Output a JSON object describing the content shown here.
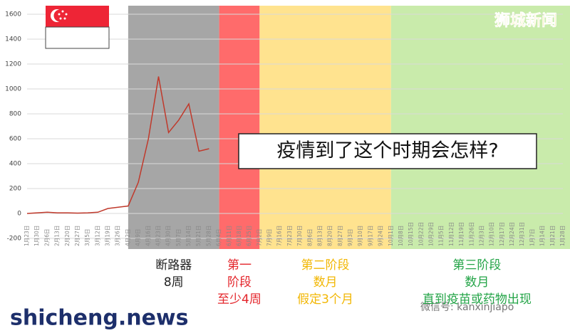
{
  "chart_data": {
    "type": "line",
    "categories": [
      "1月23日",
      "1月30日",
      "2月6日",
      "2月13日",
      "2月20日",
      "2月27日",
      "3月5日",
      "3月12日",
      "3月19日",
      "3月26日",
      "4月2日",
      "4月9日",
      "4月16日",
      "4月23日",
      "4月30日",
      "5月7日",
      "5月14日",
      "5月21日",
      "5月28日",
      "6月4日",
      "6月11日",
      "6月18日",
      "6月25日",
      "7月2日",
      "7月9日",
      "7月16日",
      "7月23日",
      "7月30日",
      "8月6日",
      "8月13日",
      "8月20日",
      "8月27日",
      "9月3日",
      "9月10日",
      "9月17日",
      "9月24日",
      "10月1日",
      "10月8日",
      "10月15日",
      "10月22日",
      "10月29日",
      "11月5日",
      "11月12日",
      "11月19日",
      "11月26日",
      "12月3日",
      "12月10日",
      "12月17日",
      "12月24日",
      "12月31日",
      "1月7日",
      "1月14日",
      "1月21日",
      "1月28日"
    ],
    "series": [
      {
        "color": "#c0392b",
        "values": [
          0,
          5,
          10,
          5,
          5,
          3,
          5,
          10,
          40,
          50,
          60,
          250,
          600,
          1100,
          650,
          750,
          880,
          500,
          520,
          null,
          null,
          null,
          null,
          null,
          null,
          null,
          null,
          null,
          null,
          null,
          null,
          null,
          null,
          null,
          null,
          null,
          null,
          null,
          null,
          null,
          null,
          null,
          null,
          null,
          null,
          null,
          null,
          null,
          null,
          null,
          null,
          null,
          null,
          null
        ]
      }
    ],
    "ylim": [
      -200,
      1600
    ],
    "yticks": [
      -200,
      0,
      200,
      400,
      600,
      800,
      1000,
      1200,
      1400,
      1600
    ],
    "grid": true,
    "phases": [
      {
        "lines": [
          "断路器",
          "8周"
        ],
        "from": "4月2日",
        "color": "#a6a6a6",
        "text_color": "#222222"
      },
      {
        "lines": [
          "第一",
          "阶段",
          "至少4周"
        ],
        "from": "6月4日",
        "color": "#ff6b6b",
        "text_color": "#e4252b"
      },
      {
        "lines": [
          "第二阶段",
          "数月",
          "假定3个月"
        ],
        "from": "7月2日",
        "color": "#ffe38f",
        "text_color": "#f2b705"
      },
      {
        "lines": [
          "第三阶段",
          "数月",
          "直到疫苗或药物出现"
        ],
        "from": "10月1日",
        "color": "#c9ebab",
        "text_color": "#23a447"
      }
    ],
    "annotation": "疫情到了这个时期会怎样?"
  },
  "watermarks": {
    "top": "狮城新闻",
    "bottom_left": "shicheng.news",
    "bottom_right": "微信号: kanxinjiapo"
  }
}
